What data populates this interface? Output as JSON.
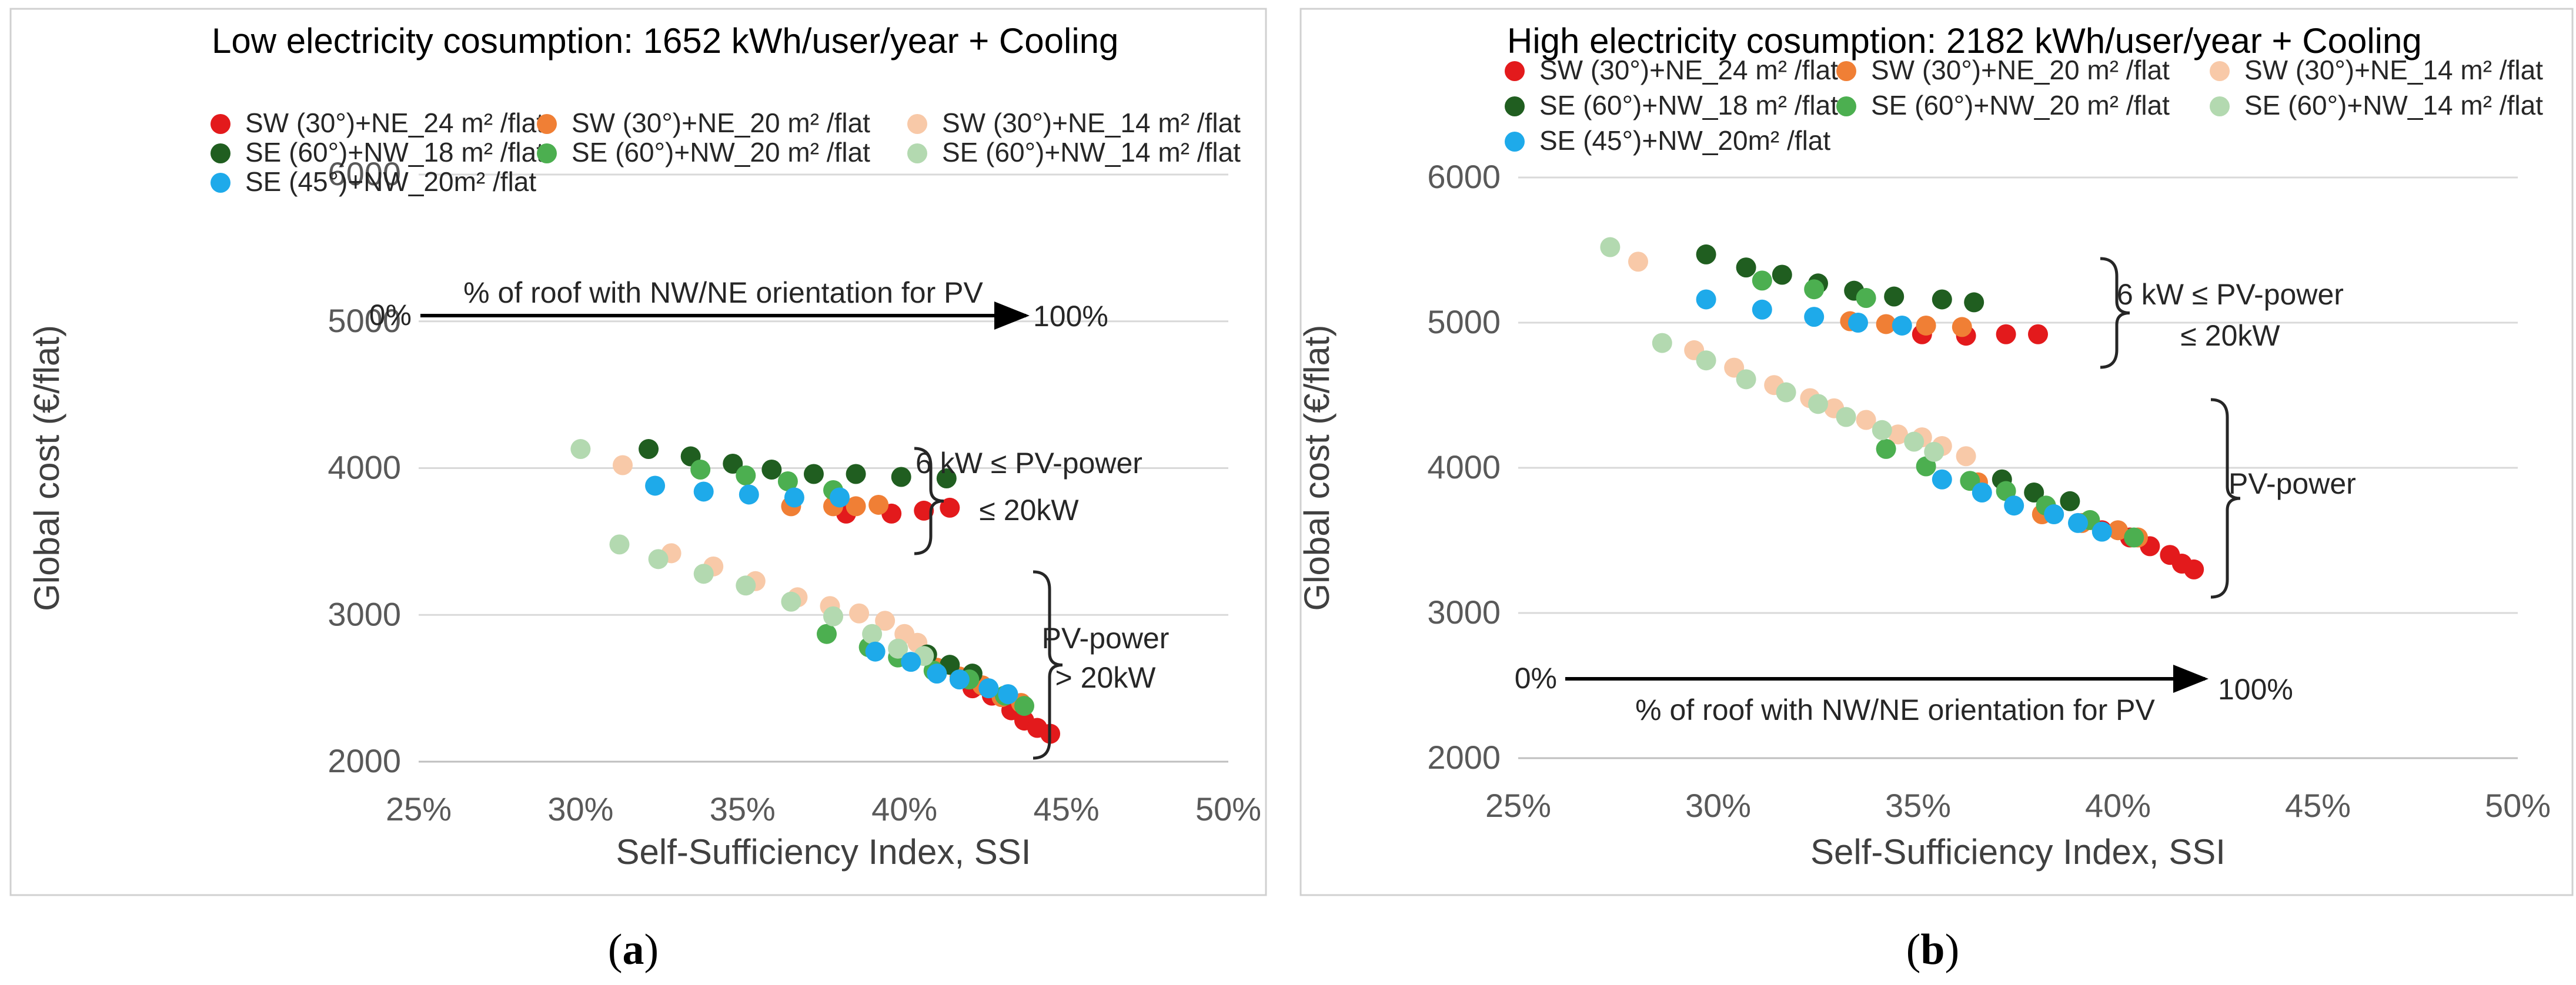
{
  "colors": {
    "sw_24": "#e31a1c",
    "sw_20": "#f07f35",
    "sw_14": "#f8c9a8",
    "se60_18": "#205e20",
    "se60_20": "#4caf50",
    "se60_14": "#b3d9b0",
    "se45_20": "#1eaaea",
    "frame": "#d0d0d0",
    "grid": "#d9d9d9"
  },
  "captions": [
    "(a)",
    "(b)"
  ],
  "chart_data": [
    {
      "type": "scatter",
      "panel": "a",
      "caption_letter": "a",
      "title": "Low electricity cosumption: 1652 kWh/user/year + Cooling",
      "xlabel": "Self-Sufficiency Index, SSI",
      "ylabel": "Global cost (€/flat)",
      "xlim": [
        0.25,
        0.5
      ],
      "ylim": [
        2000,
        6000
      ],
      "xticks": [
        "25%",
        "30%",
        "35%",
        "40%",
        "45%",
        "50%"
      ],
      "yticks": [
        "2000",
        "3000",
        "4000",
        "5000",
        "6000"
      ],
      "grid": "horizontal",
      "legend_position": "top",
      "series": [
        {
          "name": "SW (30°)+NE_24 m² /flat",
          "color_key": "sw_24",
          "points": [
            [
              0.382,
              3690
            ],
            [
              0.396,
              3690
            ],
            [
              0.406,
              3710
            ],
            [
              0.414,
              3730
            ],
            [
              0.421,
              2500
            ],
            [
              0.427,
              2450
            ],
            [
              0.433,
              2350
            ],
            [
              0.437,
              2280
            ],
            [
              0.441,
              2230
            ],
            [
              0.445,
              2190
            ]
          ]
        },
        {
          "name": "SW (30°)+NE_20 m² /flat",
          "color_key": "sw_20",
          "points": [
            [
              0.365,
              3740
            ],
            [
              0.378,
              3740
            ],
            [
              0.385,
              3740
            ],
            [
              0.392,
              3750
            ],
            [
              0.41,
              2640
            ],
            [
              0.417,
              2580
            ],
            [
              0.424,
              2520
            ],
            [
              0.43,
              2440
            ],
            [
              0.436,
              2400
            ]
          ]
        },
        {
          "name": "SW (30°)+NE_14 m² /flat",
          "color_key": "sw_14",
          "points": [
            [
              0.313,
              4020
            ],
            [
              0.328,
              3420
            ],
            [
              0.341,
              3330
            ],
            [
              0.354,
              3230
            ],
            [
              0.367,
              3120
            ],
            [
              0.377,
              3060
            ],
            [
              0.386,
              3010
            ],
            [
              0.394,
              2960
            ],
            [
              0.4,
              2870
            ],
            [
              0.404,
              2810
            ]
          ]
        },
        {
          "name": "SE (60°)+NW_18 m² /flat",
          "color_key": "se60_18",
          "points": [
            [
              0.321,
              4130
            ],
            [
              0.334,
              4080
            ],
            [
              0.347,
              4030
            ],
            [
              0.359,
              3990
            ],
            [
              0.372,
              3960
            ],
            [
              0.385,
              3960
            ],
            [
              0.399,
              3940
            ],
            [
              0.413,
              3930
            ],
            [
              0.407,
              2730
            ],
            [
              0.414,
              2660
            ],
            [
              0.421,
              2600
            ]
          ]
        },
        {
          "name": "SE (60°)+NW_20 m² /flat",
          "color_key": "se60_20",
          "points": [
            [
              0.337,
              3990
            ],
            [
              0.351,
              3950
            ],
            [
              0.364,
              3910
            ],
            [
              0.378,
              3850
            ],
            [
              0.376,
              2870
            ],
            [
              0.389,
              2780
            ],
            [
              0.398,
              2710
            ],
            [
              0.409,
              2620
            ],
            [
              0.42,
              2560
            ],
            [
              0.431,
              2450
            ],
            [
              0.437,
              2380
            ]
          ]
        },
        {
          "name": "SE (60°)+NW_14 m² /flat",
          "color_key": "se60_14",
          "points": [
            [
              0.3,
              4130
            ],
            [
              0.312,
              3480
            ],
            [
              0.324,
              3380
            ],
            [
              0.338,
              3280
            ],
            [
              0.351,
              3200
            ],
            [
              0.365,
              3090
            ],
            [
              0.378,
              2990
            ],
            [
              0.39,
              2870
            ],
            [
              0.398,
              2770
            ],
            [
              0.406,
              2720
            ]
          ]
        },
        {
          "name": "SE (45°)+NW_20m² /flat",
          "color_key": "se45_20",
          "points": [
            [
              0.323,
              3880
            ],
            [
              0.338,
              3840
            ],
            [
              0.352,
              3820
            ],
            [
              0.366,
              3800
            ],
            [
              0.38,
              3800
            ],
            [
              0.391,
              2750
            ],
            [
              0.402,
              2680
            ],
            [
              0.41,
              2600
            ],
            [
              0.417,
              2560
            ],
            [
              0.426,
              2500
            ],
            [
              0.432,
              2460
            ]
          ]
        }
      ],
      "annotations": {
        "arrow_start": "0%",
        "arrow_label": "% of roof with NW/NE orientation for PV",
        "arrow_end": "100%",
        "brace_upper_line1": "6 kW ≤ PV-power",
        "brace_upper_line2": "≤   20kW",
        "brace_lower_line1": "PV-power",
        "brace_lower_line2": "> 20kW"
      }
    },
    {
      "type": "scatter",
      "panel": "b",
      "caption_letter": "b",
      "title": "High electricity cosumption: 2182 kWh/user/year + Cooling",
      "xlabel": "Self-Sufficiency Index, SSI",
      "ylabel": "Global cost (€/flat)",
      "xlim": [
        0.25,
        0.5
      ],
      "ylim": [
        2000,
        6000
      ],
      "xticks": [
        "25%",
        "30%",
        "35%",
        "40%",
        "45%",
        "50%"
      ],
      "yticks": [
        "2000",
        "3000",
        "4000",
        "5000",
        "6000"
      ],
      "grid": "horizontal",
      "legend_position": "top",
      "series": [
        {
          "name": "SW (30°)+NE_24 m² /flat",
          "color_key": "sw_24",
          "points": [
            [
              0.351,
              4920
            ],
            [
              0.362,
              4910
            ],
            [
              0.372,
              4920
            ],
            [
              0.38,
              4920
            ],
            [
              0.396,
              3570
            ],
            [
              0.403,
              3520
            ],
            [
              0.408,
              3460
            ],
            [
              0.413,
              3400
            ],
            [
              0.416,
              3340
            ],
            [
              0.419,
              3300
            ]
          ]
        },
        {
          "name": "SW (30°)+NE_20 m² /flat",
          "color_key": "sw_20",
          "points": [
            [
              0.333,
              5010
            ],
            [
              0.342,
              4990
            ],
            [
              0.352,
              4980
            ],
            [
              0.361,
              4970
            ],
            [
              0.365,
              3900
            ],
            [
              0.381,
              3680
            ],
            [
              0.391,
              3620
            ],
            [
              0.4,
              3570
            ],
            [
              0.405,
              3520
            ]
          ]
        },
        {
          "name": "SW (30°)+NE_14 m² /flat",
          "color_key": "sw_14",
          "points": [
            [
              0.28,
              5420
            ],
            [
              0.294,
              4810
            ],
            [
              0.304,
              4690
            ],
            [
              0.314,
              4570
            ],
            [
              0.323,
              4480
            ],
            [
              0.329,
              4410
            ],
            [
              0.337,
              4330
            ],
            [
              0.345,
              4230
            ],
            [
              0.351,
              4210
            ],
            [
              0.356,
              4150
            ],
            [
              0.362,
              4080
            ]
          ]
        },
        {
          "name": "SE (60°)+NW_18 m² /flat",
          "color_key": "se60_18",
          "points": [
            [
              0.297,
              5470
            ],
            [
              0.307,
              5380
            ],
            [
              0.316,
              5330
            ],
            [
              0.325,
              5270
            ],
            [
              0.334,
              5220
            ],
            [
              0.344,
              5180
            ],
            [
              0.356,
              5160
            ],
            [
              0.364,
              5140
            ],
            [
              0.371,
              3920
            ],
            [
              0.379,
              3830
            ],
            [
              0.388,
              3770
            ]
          ]
        },
        {
          "name": "SE (60°)+NW_20 m² /flat",
          "color_key": "se60_20",
          "points": [
            [
              0.311,
              5290
            ],
            [
              0.324,
              5230
            ],
            [
              0.337,
              5170
            ],
            [
              0.342,
              4130
            ],
            [
              0.352,
              4010
            ],
            [
              0.363,
              3910
            ],
            [
              0.372,
              3840
            ],
            [
              0.382,
              3740
            ],
            [
              0.393,
              3640
            ],
            [
              0.404,
              3520
            ]
          ]
        },
        {
          "name": "SE (60°)+NW_14 m² /flat",
          "color_key": "se60_14",
          "points": [
            [
              0.273,
              5520
            ],
            [
              0.286,
              4860
            ],
            [
              0.297,
              4740
            ],
            [
              0.307,
              4610
            ],
            [
              0.317,
              4520
            ],
            [
              0.325,
              4440
            ],
            [
              0.332,
              4350
            ],
            [
              0.341,
              4260
            ],
            [
              0.349,
              4180
            ],
            [
              0.354,
              4110
            ]
          ]
        },
        {
          "name": "SE (45°)+NW_20m² /flat",
          "color_key": "se45_20",
          "points": [
            [
              0.297,
              5160
            ],
            [
              0.311,
              5090
            ],
            [
              0.324,
              5040
            ],
            [
              0.335,
              5000
            ],
            [
              0.346,
              4980
            ],
            [
              0.356,
              3920
            ],
            [
              0.366,
              3830
            ],
            [
              0.374,
              3740
            ],
            [
              0.384,
              3680
            ],
            [
              0.39,
              3620
            ],
            [
              0.396,
              3560
            ]
          ]
        }
      ],
      "annotations": {
        "arrow_start": "0%",
        "arrow_label": "% of roof with NW/NE orientation for PV",
        "arrow_end": "100%",
        "brace_upper_line1": "6 kW ≤ PV-power",
        "brace_upper_line2": "≤   20kW",
        "brace_lower_line1": "PV-power",
        "brace_lower_line2": ""
      }
    }
  ]
}
